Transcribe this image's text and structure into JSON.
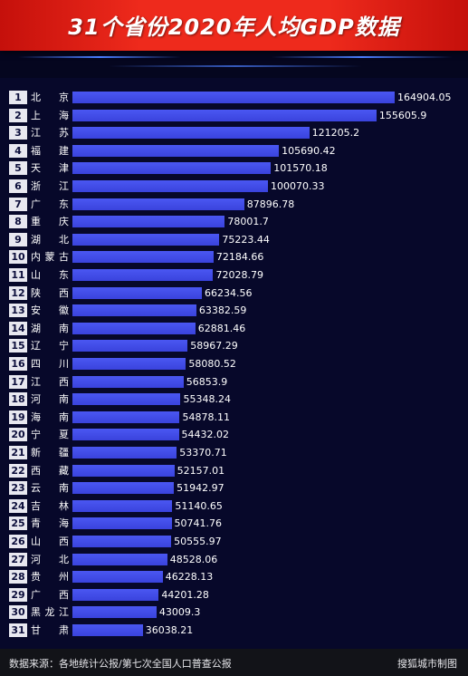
{
  "title": "31个省份2020年人均GDP数据",
  "footer": {
    "source": "数据来源：各地统计公报/第七次全国人口普查公报",
    "credit": "搜狐城市制图"
  },
  "colors": {
    "banner": "#e8261a",
    "bar": "#3f4ae6",
    "background": "#07082a"
  },
  "chart_data": {
    "type": "bar",
    "orientation": "horizontal",
    "title": "31个省份2020年人均GDP数据",
    "xlim": [
      0,
      164904.05
    ],
    "ranks": [
      "1",
      "2",
      "3",
      "4",
      "5",
      "6",
      "7",
      "8",
      "9",
      "10",
      "11",
      "12",
      "13",
      "14",
      "15",
      "16",
      "17",
      "18",
      "19",
      "20",
      "21",
      "22",
      "23",
      "24",
      "25",
      "26",
      "27",
      "28",
      "29",
      "30",
      "31"
    ],
    "categories": [
      "北 京",
      "上 海",
      "江 苏",
      "福 建",
      "天 津",
      "浙 江",
      "广 东",
      "重 庆",
      "湖 北",
      "内蒙古",
      "山 东",
      "陕 西",
      "安 徽",
      "湖 南",
      "辽 宁",
      "四 川",
      "江 西",
      "河 南",
      "海 南",
      "宁 夏",
      "新 疆",
      "西 藏",
      "云 南",
      "吉 林",
      "青 海",
      "山 西",
      "河 北",
      "贵 州",
      "广 西",
      "黑龙江",
      "甘 肃"
    ],
    "values": [
      164904.05,
      155605.9,
      121205.2,
      105690.42,
      101570.18,
      100070.33,
      87896.78,
      78001.7,
      75223.44,
      72184.66,
      72028.79,
      66234.56,
      63382.59,
      62881.46,
      58967.29,
      58080.52,
      56853.9,
      55348.24,
      54878.11,
      54432.02,
      53370.71,
      52157.01,
      51942.97,
      51140.65,
      50741.76,
      50555.97,
      48528.06,
      46228.13,
      44201.28,
      43009.3,
      36038.21
    ],
    "labels": [
      "164904.05",
      "155605.9",
      "121205.2",
      "105690.42",
      "101570.18",
      "100070.33",
      "87896.78",
      "78001.7",
      "75223.44",
      "72184.66",
      "72028.79",
      "66234.56",
      "63382.59",
      "62881.46",
      "58967.29",
      "58080.52",
      "56853.9",
      "55348.24",
      "54878.11",
      "54432.02",
      "53370.71",
      "52157.01",
      "51942.97",
      "51140.65",
      "50741.76",
      "50555.97",
      "48528.06",
      "46228.13",
      "44201.28",
      "43009.3",
      "36038.21"
    ]
  }
}
